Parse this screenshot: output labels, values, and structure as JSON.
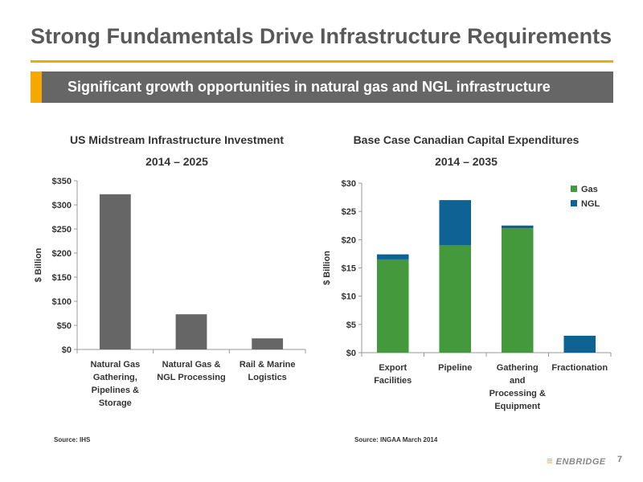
{
  "page": {
    "title": "Strong Fundamentals Drive Infrastructure Requirements",
    "subtitle": "Significant growth opportunities in natural gas and NGL infrastructure",
    "logo": "ENBRIDGE",
    "page_number": "7"
  },
  "colors": {
    "accent": "#f5a800",
    "banner": "#666666",
    "bar": "#666666",
    "gas": "#43993b",
    "ngl": "#0f6294"
  },
  "chart_data": [
    {
      "type": "bar",
      "title": "US Midstream Infrastructure Investment",
      "subtitle": "2014 – 2025",
      "ylabel": "$ Billion",
      "ylim": [
        0,
        350
      ],
      "yticks": [
        0,
        50,
        100,
        150,
        200,
        250,
        300,
        350
      ],
      "ytick_labels": [
        "$0",
        "$50",
        "$100",
        "$150",
        "$200",
        "$250",
        "$300",
        "$350"
      ],
      "categories": [
        [
          "Natural Gas",
          "Gathering,",
          "Pipelines &",
          "Storage"
        ],
        [
          "Natural Gas &",
          "NGL Processing"
        ],
        [
          "Rail & Marine",
          "Logistics"
        ]
      ],
      "values": [
        322,
        73,
        23
      ],
      "source": "Source: IHS"
    },
    {
      "type": "bar",
      "stacked": true,
      "title": "Base Case Canadian Capital Expenditures",
      "subtitle": "2014 – 2035",
      "ylabel": "$ Billion",
      "ylim": [
        0,
        30
      ],
      "yticks": [
        0,
        5,
        10,
        15,
        20,
        25,
        30
      ],
      "ytick_labels": [
        "$0",
        "$5",
        "$10",
        "$15",
        "$20",
        "$25",
        "$30"
      ],
      "categories": [
        [
          "Export",
          "Facilities"
        ],
        [
          "Pipeline"
        ],
        [
          "Gathering",
          "and",
          "Processing &",
          "Equipment"
        ],
        [
          "Fractionation"
        ]
      ],
      "series": [
        {
          "name": "Gas",
          "values": [
            16.5,
            19,
            22,
            0
          ]
        },
        {
          "name": "NGL",
          "values": [
            0.9,
            8,
            0.5,
            3
          ]
        }
      ],
      "legend": "top-right",
      "source": "Source: INGAA March 2014"
    }
  ]
}
